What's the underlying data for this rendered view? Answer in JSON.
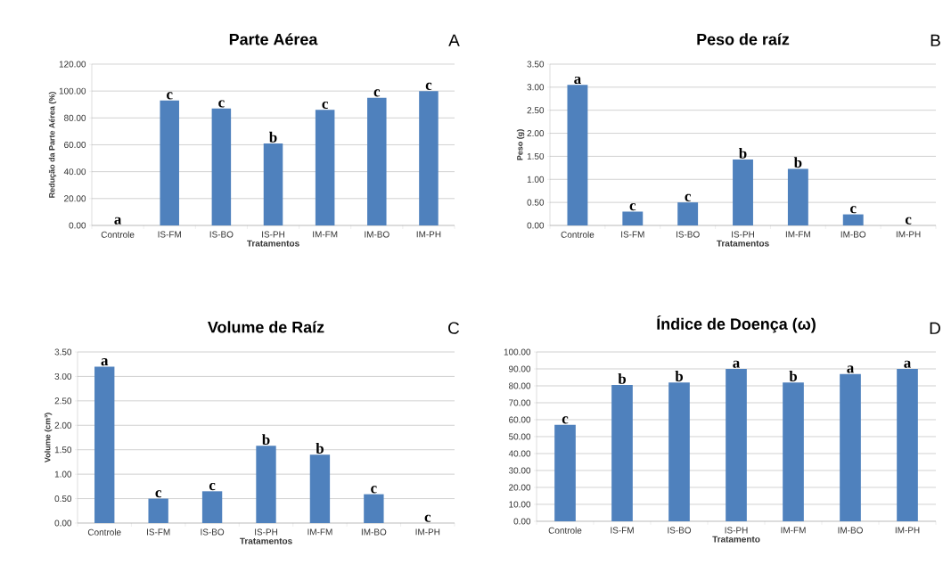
{
  "chart_data": [
    {
      "type": "bar",
      "title": "Parte Aérea",
      "xlabel": "Tratamentos",
      "ylabel": "Redução da Parte Aérea (%)",
      "categories": [
        "Controle",
        "IS-FM",
        "IS-BO",
        "IS-PH",
        "IM-FM",
        "IM-BO",
        "IM-PH"
      ],
      "values": [
        0,
        93,
        87,
        61,
        86,
        95,
        100
      ],
      "color": "#4f81bd",
      "ylim": [
        0,
        120
      ],
      "yticks": [
        {
          "value": 0,
          "label": "0.00"
        },
        {
          "value": 20,
          "label": "20.00"
        },
        {
          "value": 40,
          "label": "40.00"
        },
        {
          "value": 60,
          "label": "60.00"
        },
        {
          "value": 80,
          "label": "80.00"
        },
        {
          "value": 100,
          "label": "100.00"
        },
        {
          "value": 120,
          "label": "120.00"
        }
      ],
      "grid": "y",
      "annotations": [
        "A",
        {
          "text": "a",
          "x": "Controle",
          "y": 0
        },
        {
          "text": "c",
          "x": "IS-FM",
          "y": 93
        },
        {
          "text": "c",
          "x": "IS-BO",
          "y": 87
        },
        {
          "text": "b",
          "x": "IS-PH",
          "y": 61
        },
        {
          "text": "c",
          "x": "IM-FM",
          "y": 86
        },
        {
          "text": "c",
          "x": "IM-BO",
          "y": 95
        },
        {
          "text": "c",
          "x": "IM-PH",
          "y": 100
        }
      ]
    },
    {
      "type": "bar",
      "title": "Peso de raíz",
      "xlabel": "Tratamentos",
      "ylabel": "Peso (g)",
      "categories": [
        "Controle",
        "IS-FM",
        "IS-BO",
        "IS-PH",
        "IM-FM",
        "IM-BO",
        "IM-PH"
      ],
      "values": [
        3.05,
        0.3,
        0.5,
        1.43,
        1.23,
        0.24,
        0
      ],
      "color": "#4f81bd",
      "ylim": [
        0,
        3.5
      ],
      "yticks": [
        {
          "value": 0,
          "label": "0.00"
        },
        {
          "value": 0.5,
          "label": "0.50"
        },
        {
          "value": 1,
          "label": "1.00"
        },
        {
          "value": 1.5,
          "label": "1.50"
        },
        {
          "value": 2,
          "label": "2.00"
        },
        {
          "value": 2.5,
          "label": "2.50"
        },
        {
          "value": 3,
          "label": "3.00"
        },
        {
          "value": 3.5,
          "label": "3.50"
        }
      ],
      "grid": "y",
      "annotations": [
        "B",
        {
          "text": "a",
          "x": "Controle",
          "y": 3.05
        },
        {
          "text": "c",
          "x": "IS-FM",
          "y": 0.3
        },
        {
          "text": "c",
          "x": "IS-BO",
          "y": 0.5
        },
        {
          "text": "b",
          "x": "IS-PH",
          "y": 1.43
        },
        {
          "text": "b",
          "x": "IM-FM",
          "y": 1.23
        },
        {
          "text": "c",
          "x": "IM-BO",
          "y": 0.24
        },
        {
          "text": "c",
          "x": "IM-PH",
          "y": 0
        }
      ]
    },
    {
      "type": "bar",
      "title": "Volume de Raíz",
      "xlabel": "Tratamentos",
      "ylabel": "Volume (cm³)",
      "categories": [
        "Controle",
        "IS-FM",
        "IS-BO",
        "IS-PH",
        "IM-FM",
        "IM-BO",
        "IM-PH"
      ],
      "values": [
        3.2,
        0.5,
        0.65,
        1.58,
        1.4,
        0.59,
        0
      ],
      "color": "#4f81bd",
      "ylim": [
        0,
        3.5
      ],
      "yticks": [
        {
          "value": 0,
          "label": "0.00"
        },
        {
          "value": 0.5,
          "label": "0.50"
        },
        {
          "value": 1,
          "label": "1.00"
        },
        {
          "value": 1.5,
          "label": "1.50"
        },
        {
          "value": 2,
          "label": "2.00"
        },
        {
          "value": 2.5,
          "label": "2.50"
        },
        {
          "value": 3,
          "label": "3.00"
        },
        {
          "value": 3.5,
          "label": "3.50"
        }
      ],
      "grid": "y",
      "annotations": [
        "C",
        {
          "text": "a",
          "x": "Controle",
          "y": 3.2
        },
        {
          "text": "c",
          "x": "IS-FM",
          "y": 0.5
        },
        {
          "text": "c",
          "x": "IS-BO",
          "y": 0.65
        },
        {
          "text": "b",
          "x": "IS-PH",
          "y": 1.58
        },
        {
          "text": "b",
          "x": "IM-FM",
          "y": 1.4
        },
        {
          "text": "c",
          "x": "IM-BO",
          "y": 0.59
        },
        {
          "text": "c",
          "x": "IM-PH",
          "y": 0
        }
      ]
    },
    {
      "type": "bar",
      "title": "Índice de Doença (ω)",
      "xlabel": "Tratamento",
      "categories": [
        "Controle",
        "IS-FM",
        "IS-BO",
        "IS-PH",
        "IM-FM",
        "IM-BO",
        "IM-PH"
      ],
      "values": [
        57,
        80.5,
        82,
        90,
        82,
        87,
        90
      ],
      "color": "#4f81bd",
      "ylim": [
        0,
        100
      ],
      "yticks": [
        {
          "value": 0,
          "label": "0.00"
        },
        {
          "value": 10,
          "label": "10.00"
        },
        {
          "value": 20,
          "label": "20.00"
        },
        {
          "value": 30,
          "label": "30.00"
        },
        {
          "value": 40,
          "label": "40.00"
        },
        {
          "value": 50,
          "label": "50.00"
        },
        {
          "value": 60,
          "label": "60.00"
        },
        {
          "value": 70,
          "label": "70.00"
        },
        {
          "value": 80,
          "label": "80.00"
        },
        {
          "value": 90,
          "label": "90.00"
        },
        {
          "value": 100,
          "label": "100.00"
        }
      ],
      "grid": "y",
      "annotations": [
        "D",
        {
          "text": "a",
          "x": "IS-PH",
          "y": 90
        },
        {
          "text": "b",
          "x": "IS-FM",
          "y": 80.5
        },
        {
          "text": "b",
          "x": "IS-BO",
          "y": 82
        },
        {
          "text": "c",
          "x": "Controle",
          "y": 57
        },
        {
          "text": "b",
          "x": "IM-FM",
          "y": 82
        },
        {
          "text": "a",
          "x": "IM-BO",
          "y": 87
        },
        {
          "text": "a",
          "x": "IM-PH",
          "y": 90
        }
      ]
    }
  ]
}
